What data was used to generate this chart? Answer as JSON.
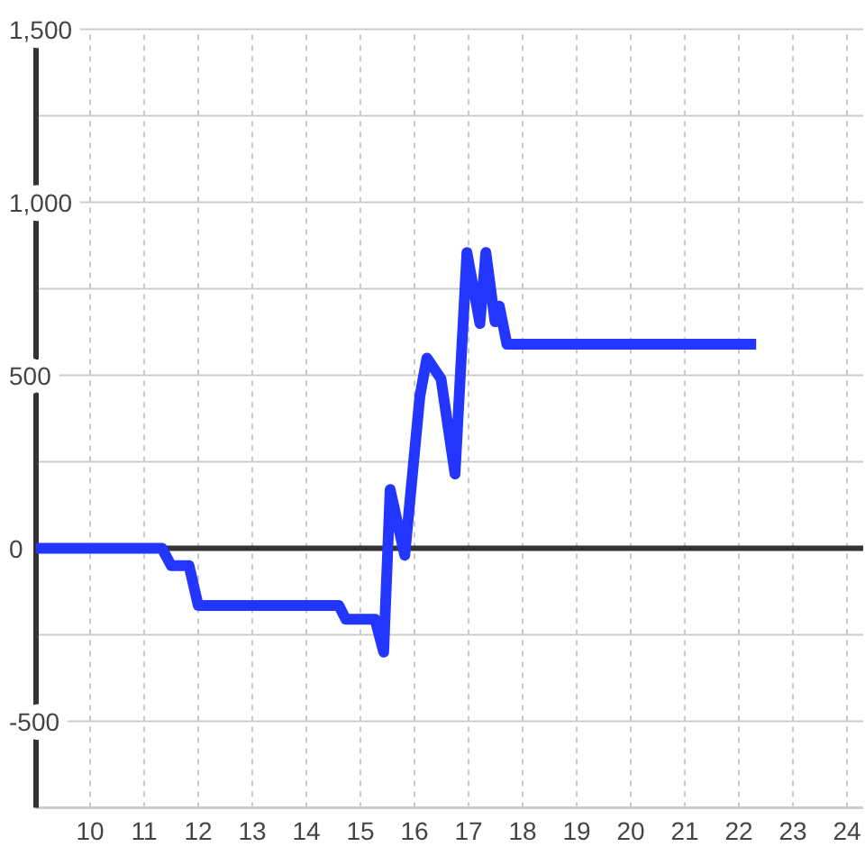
{
  "chart_data": {
    "type": "line",
    "x": [
      9,
      11.33,
      11.5,
      11.83,
      12,
      14.6,
      14.73,
      15.27,
      15.43,
      15.55,
      15.82,
      16.1,
      16.23,
      16.49,
      16.75,
      16.97,
      17.21,
      17.32,
      17.49,
      17.57,
      17.71,
      22.32
    ],
    "series": [
      {
        "color": "#2236ff",
        "values": [
          0,
          0,
          -50,
          -50,
          -165,
          -165,
          -205,
          -205,
          -300,
          170,
          -20,
          440,
          550,
          490,
          215,
          855,
          650,
          855,
          655,
          700,
          590,
          590
        ]
      }
    ],
    "xlim": [
      9,
      24.3
    ],
    "xticks": [
      10,
      11,
      12,
      13,
      14,
      15,
      16,
      17,
      18,
      19,
      20,
      21,
      22,
      23,
      24
    ],
    "ylim": [
      -750,
      1500
    ],
    "yticks": [
      -500,
      {
        "value": -250,
        "label": null
      },
      0,
      {
        "value": 250,
        "label": null
      },
      500,
      {
        "value": 750,
        "label": null
      },
      {
        "value": 1000,
        "label": "1,000"
      },
      {
        "value": 1250,
        "label": null
      },
      {
        "value": 1500,
        "label": "1,500"
      }
    ],
    "grid": true,
    "ref_lines": [
      {
        "axis": "y",
        "value": 0,
        "color": "#333333"
      }
    ]
  }
}
